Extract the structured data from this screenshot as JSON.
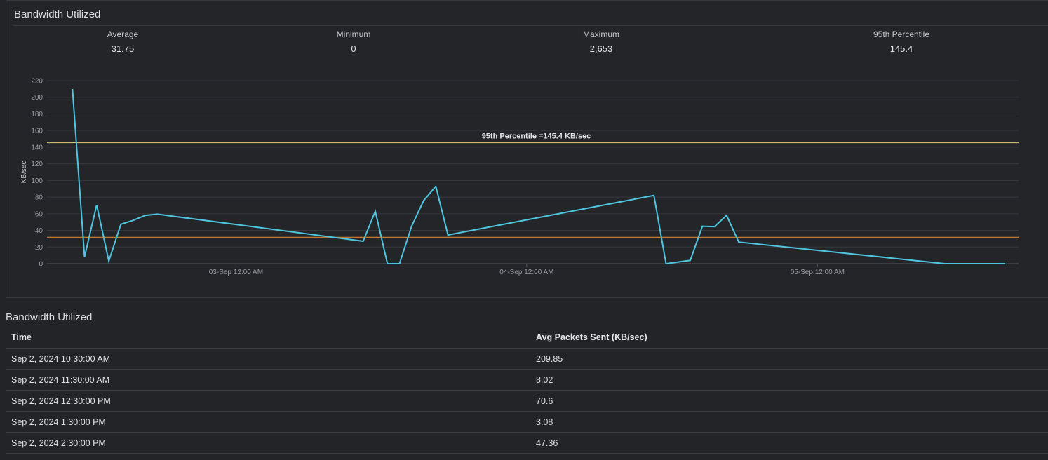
{
  "panel": {
    "title": "Bandwidth Utilized",
    "stats": [
      {
        "label": "Average",
        "value": "31.75"
      },
      {
        "label": "Minimum",
        "value": "0"
      },
      {
        "label": "Maximum",
        "value": "2,653"
      },
      {
        "label": "95th Percentile",
        "value": "145.4"
      }
    ]
  },
  "chart_data": {
    "type": "line",
    "ylabel": "KB/sec",
    "ylim": [
      0,
      220
    ],
    "yticks": [
      "0",
      "20",
      "40",
      "60",
      "80",
      "100",
      "120",
      "140",
      "160",
      "180",
      "200",
      "220"
    ],
    "xticks": [
      {
        "label": "03-Sep 12:00 AM",
        "hours": 14
      },
      {
        "label": "04-Sep 12:00 AM",
        "hours": 38
      },
      {
        "label": "05-Sep 12:00 AM",
        "hours": 62
      }
    ],
    "xlim_hours": [
      -1.6,
      78.6
    ],
    "grid": true,
    "series": [
      {
        "color": "#4fc6e0",
        "points": [
          {
            "t": "Sep 2 10:30 AM",
            "x": 0.5,
            "y": 209.85
          },
          {
            "t": "Sep 2 11:30 AM",
            "x": 1.5,
            "y": 8.02
          },
          {
            "t": "Sep 2 12:30 PM",
            "x": 2.5,
            "y": 70.6
          },
          {
            "t": "Sep 2 1:30 PM",
            "x": 3.5,
            "y": 3.08
          },
          {
            "t": "Sep 2 2:30 PM",
            "x": 4.5,
            "y": 47.36
          },
          {
            "x": 5.5,
            "y": 52
          },
          {
            "x": 6.5,
            "y": 58
          },
          {
            "x": 7.5,
            "y": 59.5
          },
          {
            "x": 24.5,
            "y": 27
          },
          {
            "x": 25.5,
            "y": 63
          },
          {
            "x": 26.5,
            "y": 0
          },
          {
            "x": 27.5,
            "y": 0
          },
          {
            "x": 28.5,
            "y": 45
          },
          {
            "x": 29.5,
            "y": 76
          },
          {
            "x": 30.5,
            "y": 93
          },
          {
            "x": 31.5,
            "y": 34.5
          },
          {
            "x": 48.5,
            "y": 82
          },
          {
            "x": 49.5,
            "y": 0
          },
          {
            "x": 51.5,
            "y": 4
          },
          {
            "x": 52.5,
            "y": 45
          },
          {
            "x": 53.5,
            "y": 44.5
          },
          {
            "x": 54.5,
            "y": 58
          },
          {
            "x": 55.5,
            "y": 26
          },
          {
            "x": 72.5,
            "y": 0
          },
          {
            "x": 77.5,
            "y": 0
          }
        ]
      }
    ],
    "reference_lines": [
      {
        "value": 145.4,
        "color": "#c9b66b",
        "label": "95th Percentile =145.4 KB/sec"
      },
      {
        "value": 31.75,
        "color": "#d9822b",
        "label": ""
      }
    ]
  },
  "table": {
    "title": "Bandwidth Utilized",
    "columns": [
      "Time",
      "Avg Packets Sent (KB/sec)"
    ],
    "rows": [
      [
        "Sep 2, 2024 10:30:00 AM",
        "209.85"
      ],
      [
        "Sep 2, 2024 11:30:00 AM",
        "8.02"
      ],
      [
        "Sep 2, 2024 12:30:00 PM",
        "70.6"
      ],
      [
        "Sep 2, 2024 1:30:00 PM",
        "3.08"
      ],
      [
        "Sep 2, 2024 2:30:00 PM",
        "47.36"
      ]
    ]
  }
}
